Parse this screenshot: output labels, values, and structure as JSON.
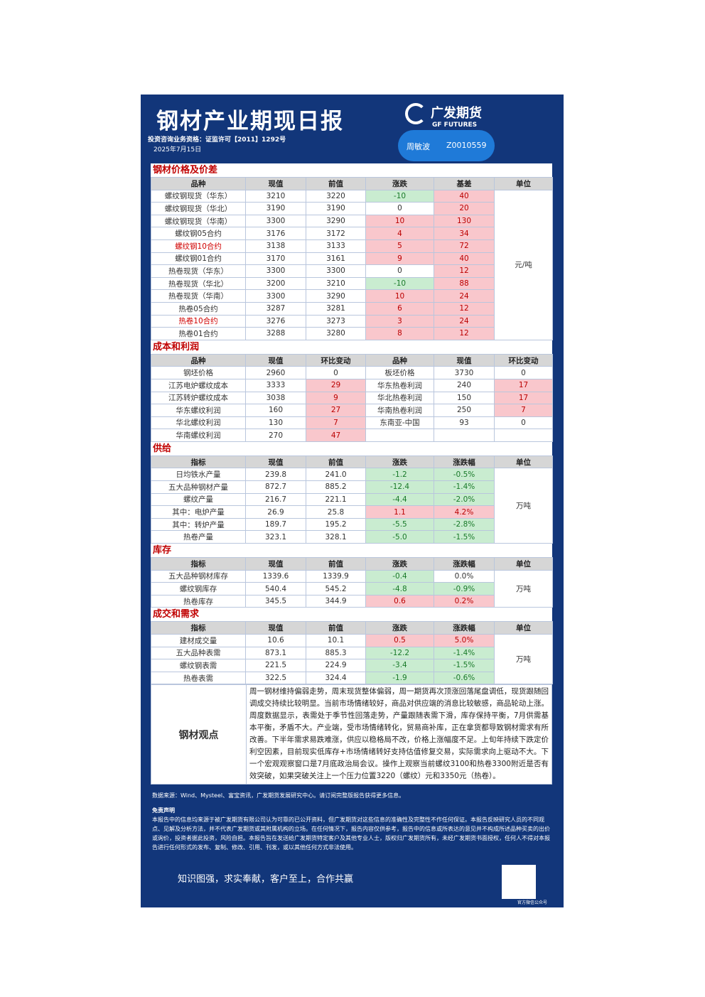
{
  "header": {
    "title": "钢材产业期现日报",
    "license": "投资咨询业务资格：证监许可【2011】1292号",
    "date": "2025年7月15日",
    "logo_cn": "广发期货",
    "logo_en": "GF FUTURES",
    "analyst": "周敏波",
    "analyst_id": "Z0010559"
  },
  "price": {
    "title": "钢材价格及价差",
    "columns": [
      "品种",
      "现值",
      "前值",
      "涨跌",
      "基差",
      "单位"
    ],
    "unit": "元/吨",
    "rows": [
      [
        "螺纹钢现货（华东）",
        "3210",
        "3220",
        "-10",
        "40"
      ],
      [
        "螺纹钢现货（华北）",
        "3190",
        "3190",
        "0",
        "20"
      ],
      [
        "螺纹钢现货（华南）",
        "3300",
        "3290",
        "10",
        "130"
      ],
      [
        "螺纹钢05合约",
        "3176",
        "3172",
        "4",
        "34"
      ],
      [
        "螺纹钢10合约",
        "3138",
        "3133",
        "5",
        "72"
      ],
      [
        "螺纹钢01合约",
        "3170",
        "3161",
        "9",
        "40"
      ],
      [
        "热卷现货（华东）",
        "3300",
        "3300",
        "0",
        "12"
      ],
      [
        "热卷现货（华北）",
        "3200",
        "3210",
        "-10",
        "88"
      ],
      [
        "热卷现货（华南）",
        "3300",
        "3290",
        "10",
        "24"
      ],
      [
        "热卷05合约",
        "3287",
        "3281",
        "6",
        "12"
      ],
      [
        "热卷10合约",
        "3276",
        "3273",
        "3",
        "24"
      ],
      [
        "热卷01合约",
        "3288",
        "3280",
        "8",
        "12"
      ]
    ],
    "highlight_rows": [
      4,
      10
    ]
  },
  "cost": {
    "title": "成本和利润",
    "columns": [
      "品种",
      "现值",
      "环比变动",
      "品种",
      "现值",
      "环比变动"
    ],
    "rows": [
      [
        "钢坯价格",
        "2960",
        "0",
        "板坯价格",
        "3730",
        "0"
      ],
      [
        "江苏电炉螺纹成本",
        "3333",
        "29",
        "华东热卷利润",
        "240",
        "17"
      ],
      [
        "江苏转炉螺纹成本",
        "3038",
        "9",
        "华北热卷利润",
        "150",
        "17"
      ],
      [
        "华东螺纹利润",
        "160",
        "27",
        "华南热卷利润",
        "250",
        "7"
      ],
      [
        "华北螺纹利润",
        "130",
        "7",
        "东南亚-中国",
        "93",
        "0"
      ],
      [
        "华南螺纹利润",
        "270",
        "47"
      ]
    ]
  },
  "supply": {
    "title": "供给",
    "columns": [
      "指标",
      "现值",
      "前值",
      "涨跌",
      "涨跌幅",
      "单位"
    ],
    "unit": "万吨",
    "rows": [
      [
        "日均铁水产量",
        "239.8",
        "241.0",
        "-1.2",
        "-0.5%"
      ],
      [
        "五大品种钢材产量",
        "872.7",
        "885.2",
        "-12.4",
        "-1.4%"
      ],
      [
        "螺纹产量",
        "216.7",
        "221.1",
        "-4.4",
        "-2.0%"
      ],
      [
        "其中：电炉产量",
        "26.9",
        "25.8",
        "1.1",
        "4.2%"
      ],
      [
        "其中：转炉产量",
        "189.7",
        "195.2",
        "-5.5",
        "-2.8%"
      ],
      [
        "热卷产量",
        "323.1",
        "328.1",
        "-5.0",
        "-1.5%"
      ]
    ]
  },
  "inventory": {
    "title": "库存",
    "columns": [
      "指标",
      "现值",
      "前值",
      "涨跌",
      "涨跌幅",
      "单位"
    ],
    "unit": "万吨",
    "rows": [
      [
        "五大品种钢材库存",
        "1339.6",
        "1339.9",
        "-0.4",
        "0.0%"
      ],
      [
        "螺纹钢库存",
        "540.4",
        "545.2",
        "-4.8",
        "-0.9%"
      ],
      [
        "热卷库存",
        "345.5",
        "344.9",
        "0.6",
        "0.2%"
      ]
    ]
  },
  "demand": {
    "title": "成交和需求",
    "columns": [
      "指标",
      "现值",
      "前值",
      "涨跌",
      "涨跌幅",
      "单位"
    ],
    "unit": "万吨",
    "rows": [
      [
        "建材成交量",
        "10.6",
        "10.1",
        "0.5",
        "5.0%"
      ],
      [
        "五大品种表需",
        "873.1",
        "885.3",
        "-12.2",
        "-1.4%"
      ],
      [
        "螺纹钢表需",
        "221.5",
        "224.9",
        "-3.4",
        "-1.5%"
      ],
      [
        "热卷表需",
        "322.5",
        "324.4",
        "-1.9",
        "-0.6%"
      ]
    ]
  },
  "view": {
    "label": "钢材观点",
    "text": "周一钢材维持偏弱走势，周末现货整体偏弱，周一期货再次顶涨回落尾盘调低，现货跟随回调成交持续比较明显。当前市场情绪较好，商品对供应端的消息比较敏感，商品轮动上涨。周度数据显示，表需处于季节性回落走势，产量跟随表需下滑，库存保持平衡，7月供需基本平衡，矛盾不大。产业端，受市场情绪转化，贸易商补库，正在拿货都导致钢材需求有所改善。下半年需求易跌难涨，供应以稳格局不改，价格上涨幅度不足。上旬年持续下跌定价利空因素，目前现实低库存+市场情绪转好支持估值修复交易，实际需求向上驱动不大。下一个宏观观察窗口是7月底政治局会议。操作上观察当前螺纹3100和热卷3300附近是否有效突破，如果突破关注上一个压力位置3220（螺纹）元和3350元（热卷）。"
  },
  "footer": {
    "source": "数据来源：Wind、Mysteel、富宝资讯，广发期货发展研究中心。请订阅完整版报告获得更多信息。",
    "disclaimer_title": "免责声明",
    "disclaimer": "本报告中的信息均来源于被广发期货有限公司认为可靠的已公开资料，但广发期货对这些信息的准确性及完整性不作任何保证。本报告反映研究人员的不同观点、见解及分析方法，并不代表广发期货或其附属机构的立场。在任何情况下，报告内容仅供参考，报告中的信息或所表达的意见并不构成所述品种买卖的出价或询价，投资者据此投资，风险自担。本报告旨在发送给广发期货特定客户及其他专业人士，版权归广发期货所有，未经广发期货书面授权，任何人不得对本报告进行任何形式的发布、复制、修改、引用、刊发，或以其他任何方式非法使用。",
    "slogan": "知识图强，求实奉献，客户至上，合作共赢",
    "qr_caption": "官方微信公众号"
  }
}
